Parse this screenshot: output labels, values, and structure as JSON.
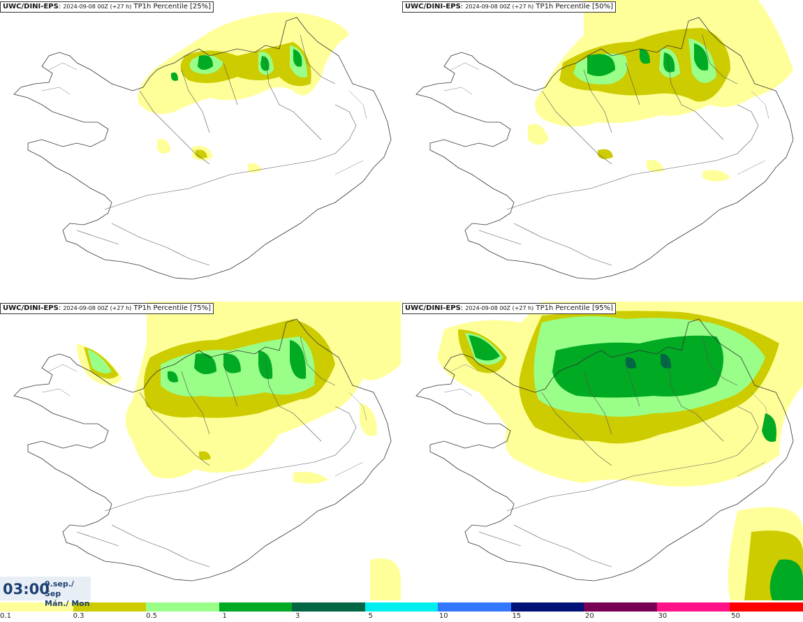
{
  "panels": [
    {
      "model": "UWC/DINI-EPS",
      "run": "2024-09-08 00Z (+27 h)",
      "variable": "TP1h Percentile [25%]"
    },
    {
      "model": "UWC/DINI-EPS",
      "run": "2024-09-08 00Z (+27 h)",
      "variable": "TP1h Percentile [50%]"
    },
    {
      "model": "UWC/DINI-EPS",
      "run": "2024-09-08 00Z (+27 h)",
      "variable": "TP1h Percentile [75%]"
    },
    {
      "model": "UWC/DINI-EPS",
      "run": "2024-09-08 00Z (+27 h)",
      "variable": "TP1h Percentile [95%]"
    }
  ],
  "valid_time": {
    "time": "03:00",
    "date_line1": "9.sep./ Sep",
    "date_line2": "Mán./ Mon"
  },
  "legend": {
    "ticks": [
      "0.1",
      "0.3",
      "0.5",
      "1",
      "3",
      "5",
      "10",
      "15",
      "20",
      "30",
      "50"
    ],
    "colors": [
      "#ffff99",
      "#cccc00",
      "#99ff88",
      "#00aa22",
      "#006644",
      "#00eeee",
      "#3377ff",
      "#001177",
      "#770055",
      "#ff1188",
      "#ff0000"
    ]
  }
}
